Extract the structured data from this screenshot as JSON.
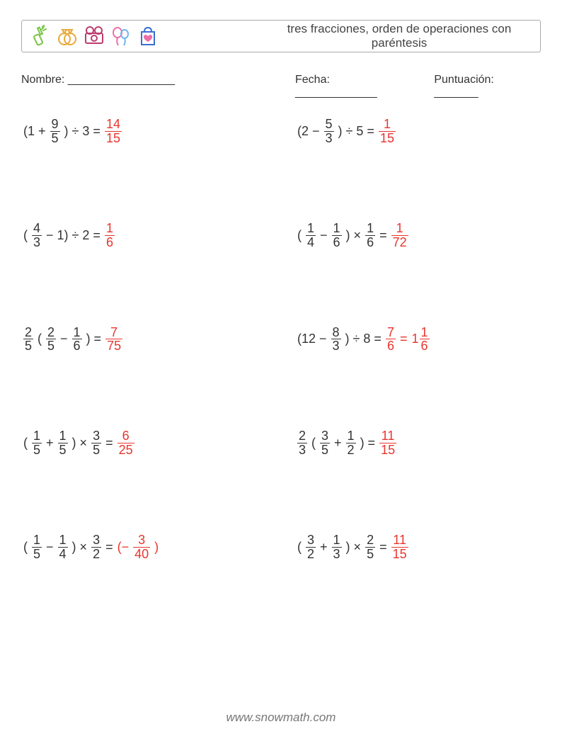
{
  "header": {
    "title": "tres fracciones, orden de operaciones con paréntesis",
    "icon_colors": {
      "bottle": "#77c544",
      "rings": "#e8a93a",
      "camera": "#bb3d6e",
      "balloons_left": "#ec6fa8",
      "balloons_right": "#6fb7ec",
      "bag": "#3a6fd4",
      "bag_heart": "#ec6fa8"
    }
  },
  "meta": {
    "name_label": "Nombre: _________________",
    "date_label": "Fecha: _____________",
    "score_label": "Puntuación: _______"
  },
  "style": {
    "text_color": "#333333",
    "answer_color": "#e8352e",
    "border_color": "#aaaaaa",
    "background": "#ffffff",
    "font_size_body": 18,
    "font_size_header": 17,
    "font_size_meta": 16
  },
  "problems": [
    {
      "tokens": [
        {
          "t": "text",
          "v": "(1 +"
        },
        {
          "t": "frac",
          "n": "9",
          "d": "5"
        },
        {
          "t": "text",
          "v": ") ÷ 3 ="
        },
        {
          "t": "frac",
          "n": "14",
          "d": "15",
          "ans": true
        }
      ]
    },
    {
      "tokens": [
        {
          "t": "text",
          "v": "(2 −"
        },
        {
          "t": "frac",
          "n": "5",
          "d": "3"
        },
        {
          "t": "text",
          "v": ") ÷ 5 ="
        },
        {
          "t": "frac",
          "n": "1",
          "d": "15",
          "ans": true
        }
      ]
    },
    {
      "tokens": [
        {
          "t": "text",
          "v": "("
        },
        {
          "t": "frac",
          "n": "4",
          "d": "3"
        },
        {
          "t": "text",
          "v": "− 1) ÷ 2 ="
        },
        {
          "t": "frac",
          "n": "1",
          "d": "6",
          "ans": true
        }
      ]
    },
    {
      "tokens": [
        {
          "t": "text",
          "v": "("
        },
        {
          "t": "frac",
          "n": "1",
          "d": "4"
        },
        {
          "t": "text",
          "v": "−"
        },
        {
          "t": "frac",
          "n": "1",
          "d": "6"
        },
        {
          "t": "text",
          "v": ") ×"
        },
        {
          "t": "frac",
          "n": "1",
          "d": "6"
        },
        {
          "t": "text",
          "v": "="
        },
        {
          "t": "frac",
          "n": "1",
          "d": "72",
          "ans": true
        }
      ]
    },
    {
      "tokens": [
        {
          "t": "frac",
          "n": "2",
          "d": "5"
        },
        {
          "t": "text",
          "v": "("
        },
        {
          "t": "frac",
          "n": "2",
          "d": "5"
        },
        {
          "t": "text",
          "v": "−"
        },
        {
          "t": "frac",
          "n": "1",
          "d": "6"
        },
        {
          "t": "text",
          "v": ") ="
        },
        {
          "t": "frac",
          "n": "7",
          "d": "75",
          "ans": true
        }
      ]
    },
    {
      "tokens": [
        {
          "t": "text",
          "v": "(12 −"
        },
        {
          "t": "frac",
          "n": "8",
          "d": "3"
        },
        {
          "t": "text",
          "v": ") ÷ 8 ="
        },
        {
          "t": "frac",
          "n": "7",
          "d": "6",
          "ans": true
        },
        {
          "t": "text",
          "v": "=",
          "ans": true
        },
        {
          "t": "mixed",
          "w": "1",
          "n": "1",
          "d": "6",
          "ans": true
        }
      ]
    },
    {
      "tokens": [
        {
          "t": "text",
          "v": "("
        },
        {
          "t": "frac",
          "n": "1",
          "d": "5"
        },
        {
          "t": "text",
          "v": "+"
        },
        {
          "t": "frac",
          "n": "1",
          "d": "5"
        },
        {
          "t": "text",
          "v": ") ×"
        },
        {
          "t": "frac",
          "n": "3",
          "d": "5"
        },
        {
          "t": "text",
          "v": "="
        },
        {
          "t": "frac",
          "n": "6",
          "d": "25",
          "ans": true
        }
      ]
    },
    {
      "tokens": [
        {
          "t": "frac",
          "n": "2",
          "d": "3"
        },
        {
          "t": "text",
          "v": "("
        },
        {
          "t": "frac",
          "n": "3",
          "d": "5"
        },
        {
          "t": "text",
          "v": "+"
        },
        {
          "t": "frac",
          "n": "1",
          "d": "2"
        },
        {
          "t": "text",
          "v": ") ="
        },
        {
          "t": "frac",
          "n": "11",
          "d": "15",
          "ans": true
        }
      ]
    },
    {
      "tokens": [
        {
          "t": "text",
          "v": "("
        },
        {
          "t": "frac",
          "n": "1",
          "d": "5"
        },
        {
          "t": "text",
          "v": "−"
        },
        {
          "t": "frac",
          "n": "1",
          "d": "4"
        },
        {
          "t": "text",
          "v": ") ×"
        },
        {
          "t": "frac",
          "n": "3",
          "d": "2"
        },
        {
          "t": "text",
          "v": "="
        },
        {
          "t": "text",
          "v": "(−",
          "ans": true
        },
        {
          "t": "frac",
          "n": "3",
          "d": "40",
          "ans": true
        },
        {
          "t": "text",
          "v": ")",
          "ans": true
        }
      ]
    },
    {
      "tokens": [
        {
          "t": "text",
          "v": "("
        },
        {
          "t": "frac",
          "n": "3",
          "d": "2"
        },
        {
          "t": "text",
          "v": "+"
        },
        {
          "t": "frac",
          "n": "1",
          "d": "3"
        },
        {
          "t": "text",
          "v": ") ×"
        },
        {
          "t": "frac",
          "n": "2",
          "d": "5"
        },
        {
          "t": "text",
          "v": "="
        },
        {
          "t": "frac",
          "n": "11",
          "d": "15",
          "ans": true
        }
      ]
    }
  ],
  "footer": "www.snowmath.com"
}
